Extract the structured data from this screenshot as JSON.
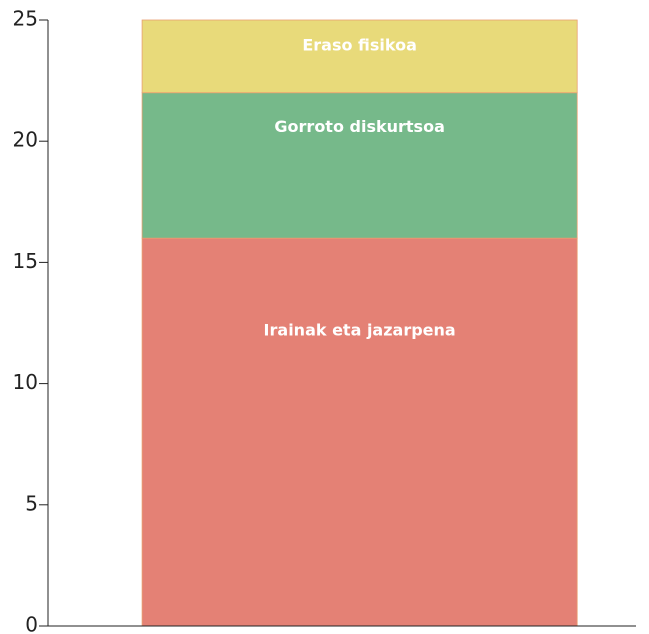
{
  "chart_data": {
    "type": "stacked-bar",
    "categories": [
      null
    ],
    "series": [
      {
        "name": "Irainak eta jazarpena",
        "color": "#e48175",
        "values": [
          16
        ]
      },
      {
        "name": "Gorroto diskurtsoa",
        "color": "#76b98a",
        "values": [
          6
        ]
      },
      {
        "name": "Eraso fisikoa",
        "color": "#e8da7a",
        "values": [
          3
        ]
      }
    ],
    "ylim": [
      0,
      25
    ],
    "yticks": [
      0,
      5,
      10,
      15,
      20,
      25
    ]
  }
}
